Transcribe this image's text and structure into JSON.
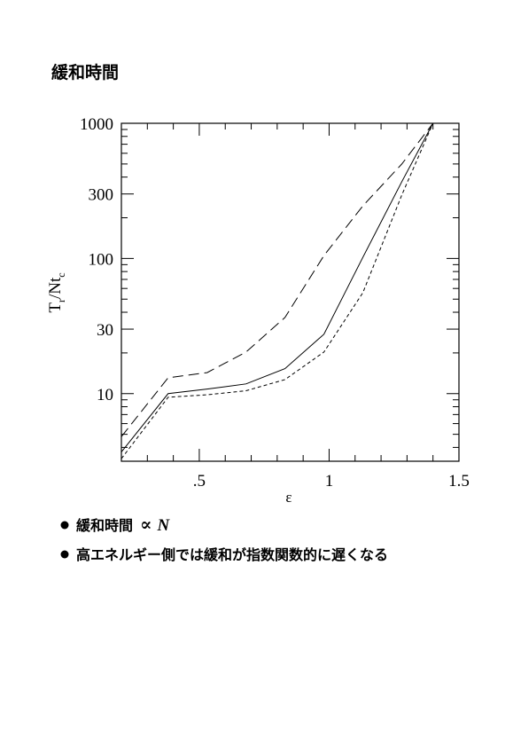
{
  "header": {
    "title": "緩和時間"
  },
  "chart_data": {
    "type": "line",
    "ylabel_parts": [
      "T",
      "r",
      "/Nt",
      "c"
    ],
    "xlabel": "ε",
    "xlim": [
      0.2,
      1.5
    ],
    "ylim": [
      3.16,
      1000
    ],
    "ylog": true,
    "xticks": [
      {
        "value": 0.5,
        "label": ".5"
      },
      1,
      1.5
    ],
    "xminor": [
      0.3,
      0.4,
      0.6,
      0.7,
      0.8,
      0.9,
      1.1,
      1.2,
      1.3,
      1.4
    ],
    "yticks": [
      10,
      30,
      100,
      300,
      1000
    ],
    "yminor": [
      4,
      5,
      6,
      7,
      8,
      9,
      20,
      40,
      50,
      60,
      70,
      80,
      90,
      200,
      400,
      500,
      600,
      700,
      800,
      900
    ],
    "x": [
      0.2,
      0.38,
      0.53,
      0.68,
      0.83,
      0.98,
      1.13,
      1.28,
      1.4
    ],
    "series": [
      {
        "color": "#000000",
        "dash": "12 6",
        "values": [
          4.8,
          13.1,
          14.3,
          20.3,
          36.6,
          105,
          245,
          500,
          1000
        ]
      },
      {
        "color": "#000000",
        "dash": "none",
        "values": [
          3.7,
          10,
          10.8,
          11.8,
          15.3,
          27.5,
          102,
          370,
          1000
        ]
      },
      {
        "color": "#000000",
        "dash": "4 3",
        "values": [
          3.3,
          9.4,
          9.8,
          10.5,
          12.7,
          20.3,
          55.8,
          295,
          1000
        ]
      }
    ]
  },
  "bullets": [
    {
      "text": "緩和時間",
      "symbol": "∝",
      "var": "N"
    },
    {
      "text": "高エネルギー側では緩和が指数関数的に遅くなる"
    }
  ]
}
